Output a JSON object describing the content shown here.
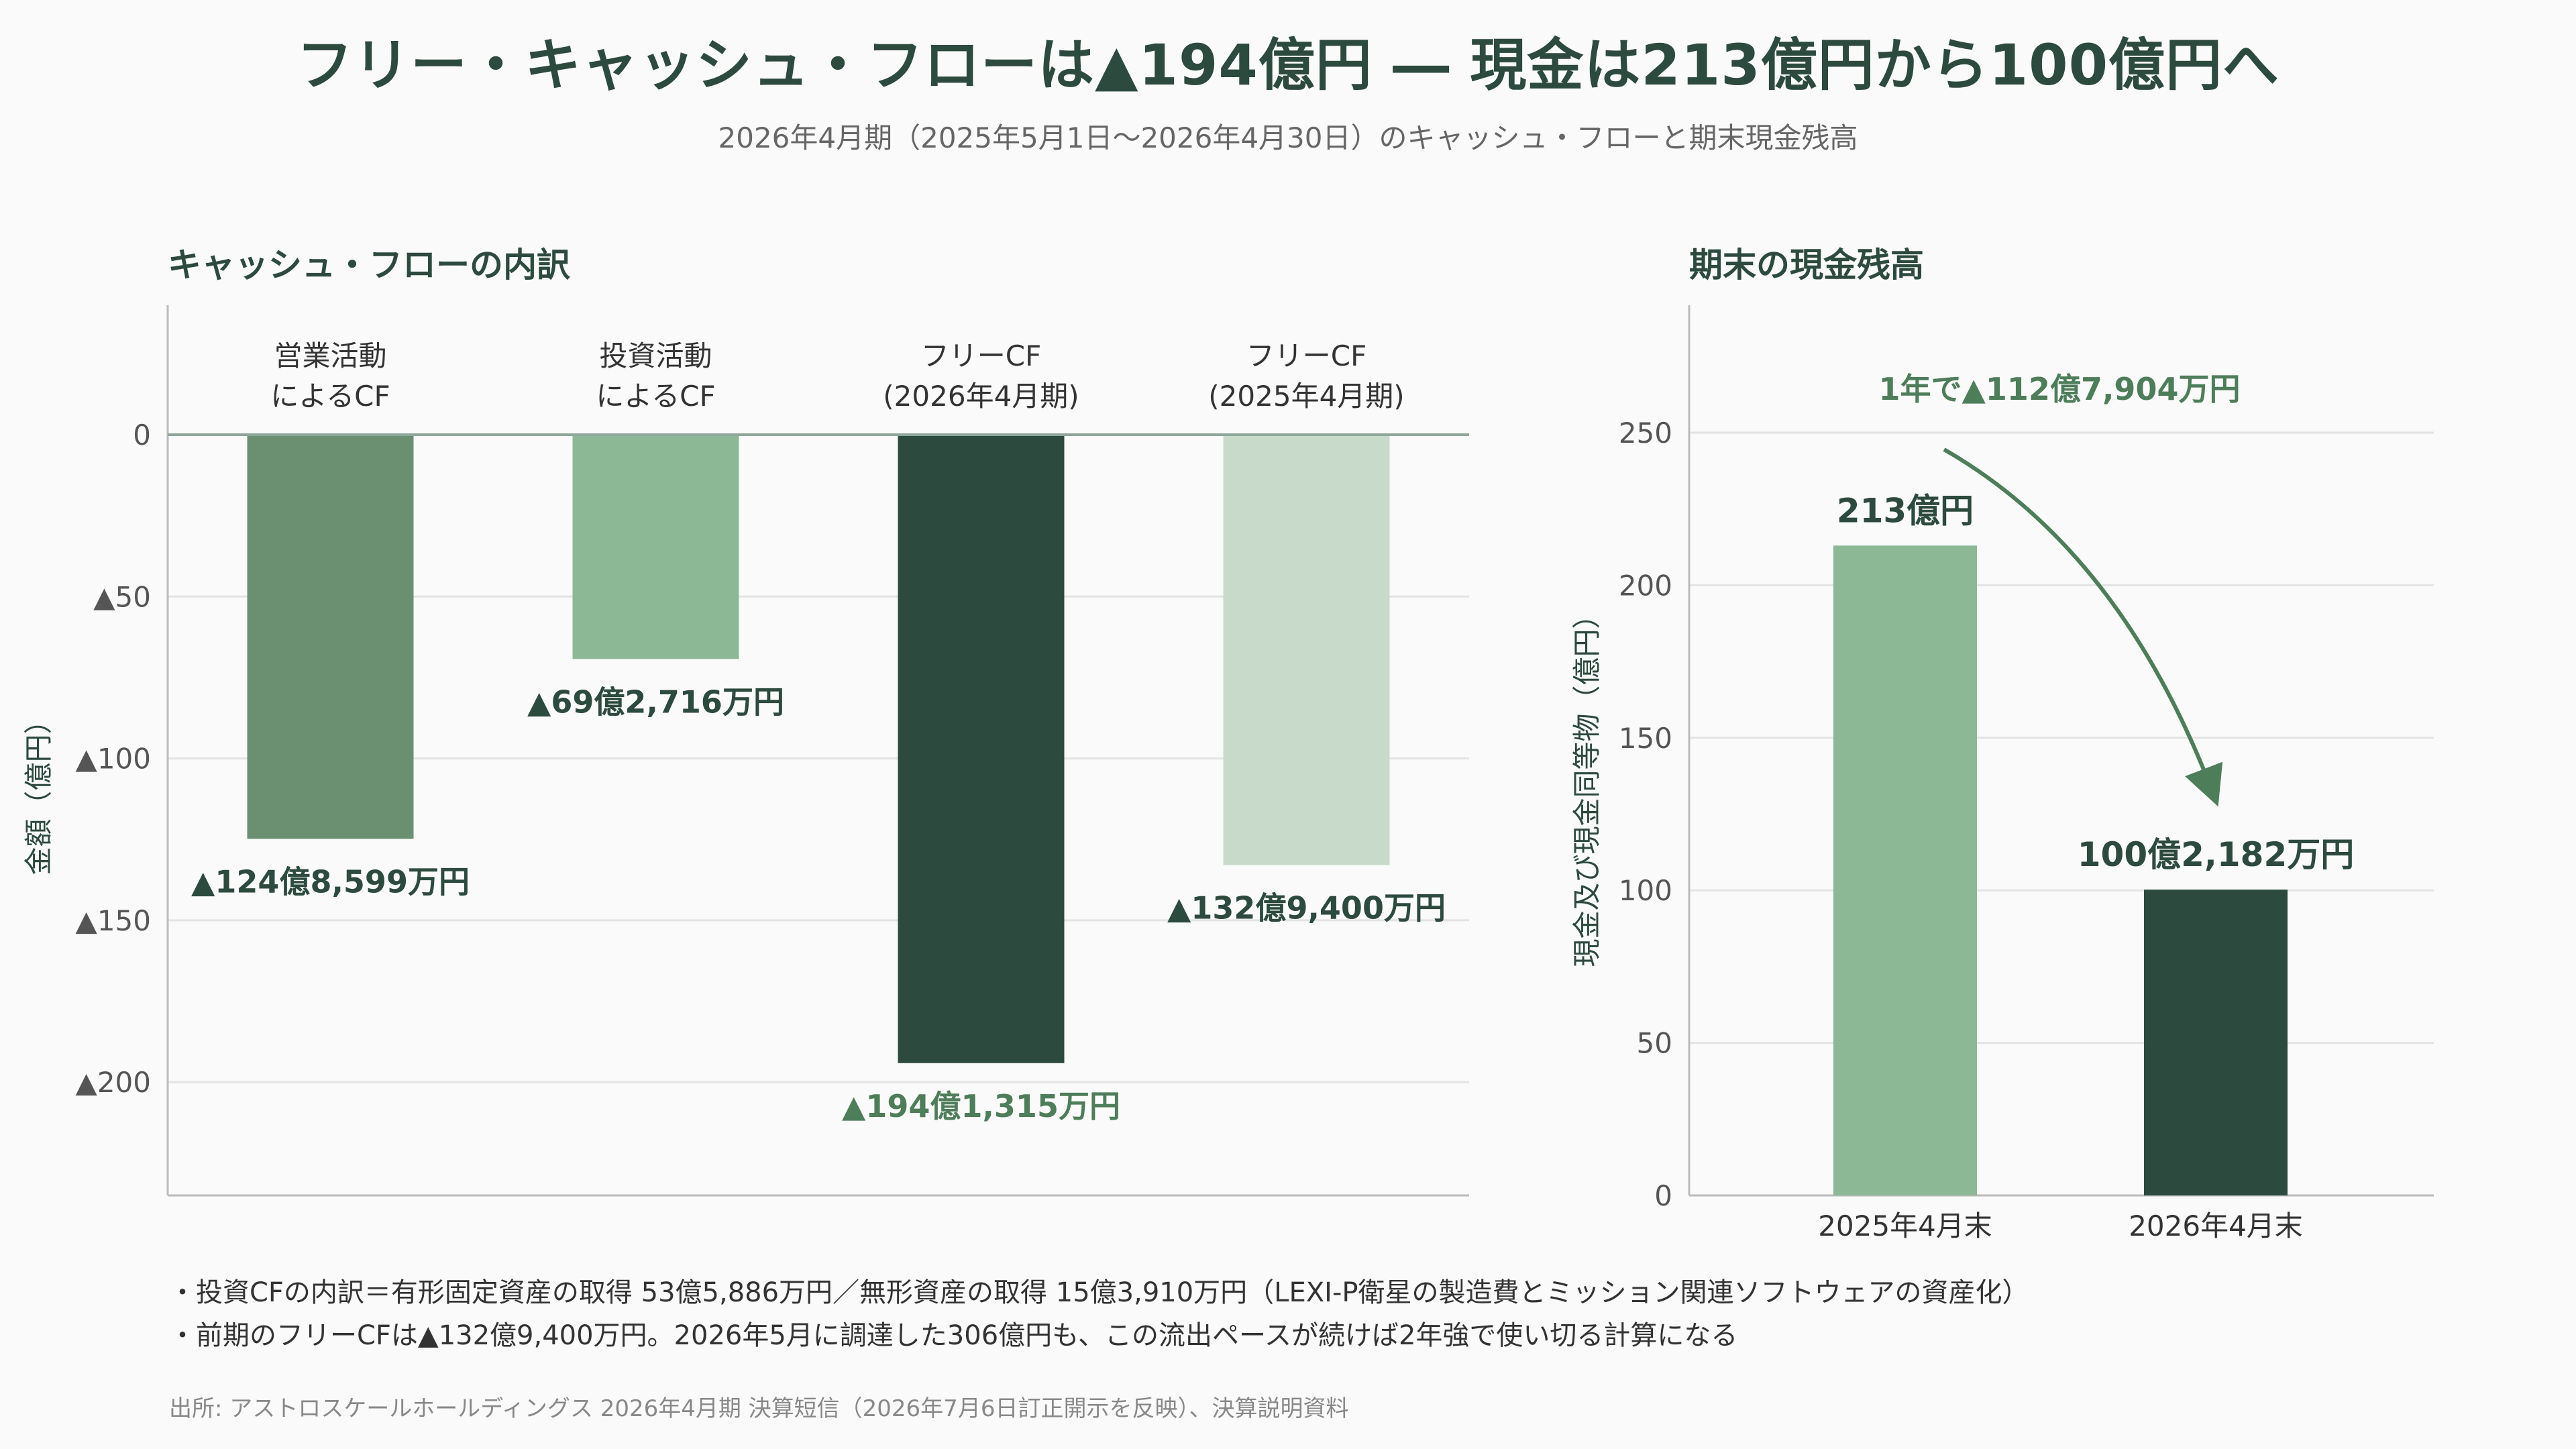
{
  "title": "フリー・キャッシュ・フローは▲194億円 ― 現金は213億円から100億円へ",
  "subtitle": "2026年4月期（2025年5月1日〜2026年4月30日）のキャッシュ・フローと期末現金残高",
  "colors": {
    "dark": "#2d4a3e",
    "medium": "#6b8f71",
    "light": "#8db896",
    "pale": "#c8dac9",
    "accent": "#4e7d5a",
    "grid": "#e3e3e3",
    "axis": "#999999"
  },
  "chart_data": [
    {
      "type": "bar",
      "title": "キャッシュ・フローの内訳",
      "ylabel": "金額（億円）",
      "ylim": [
        -235,
        40
      ],
      "yticks": [
        0,
        -50,
        -100,
        -150,
        -200
      ],
      "ytick_labels": [
        "0",
        "▲50",
        "▲100",
        "▲150",
        "▲200"
      ],
      "grid": true,
      "categories": [
        [
          "営業活動",
          "によるCF"
        ],
        [
          "投資活動",
          "によるCF"
        ],
        [
          "フリーCF",
          "(2026年4月期)"
        ],
        [
          "フリーCF",
          "(2025年4月期)"
        ]
      ],
      "values": [
        -124.8599,
        -69.2716,
        -194.1315,
        -132.94
      ],
      "data_labels": [
        "▲124億8,599万円",
        "▲69億2,716万円",
        "▲194億1,315万円",
        "▲132億9,400万円"
      ],
      "bar_colors": [
        "#6b8f71",
        "#8db896",
        "#2d4a3e",
        "#c8dac9"
      ],
      "label_colors": [
        "#2d4a3e",
        "#2d4a3e",
        "#4e7d5a",
        "#2d4a3e"
      ]
    },
    {
      "type": "bar",
      "title": "期末の現金残高",
      "ylabel": "現金及び現金同等物（億円）",
      "ylim": [
        0,
        250
      ],
      "yticks": [
        0,
        50,
        100,
        150,
        200,
        250
      ],
      "grid": true,
      "categories": [
        "2025年4月末",
        "2026年4月末"
      ],
      "values": [
        213,
        100.2182
      ],
      "data_labels": [
        "213億円",
        "100億2,182万円"
      ],
      "bar_colors": [
        "#8db896",
        "#2d4a3e"
      ],
      "annotation": "1年で▲112億7,904万円"
    }
  ],
  "notes": [
    "・投資CFの内訳＝有形固定資産の取得 53億5,886万円／無形資産の取得 15億3,910万円（LEXI-P衛星の製造費とミッション関連ソフトウェアの資産化）",
    "・前期のフリーCFは▲132億9,400万円。2026年5月に調達した306億円も、この流出ペースが続けば2年強で使い切る計算になる"
  ],
  "source": "出所: アストロスケールホールディングス 2026年4月期 決算短信（2026年7月6日訂正開示を反映）、決算説明資料"
}
